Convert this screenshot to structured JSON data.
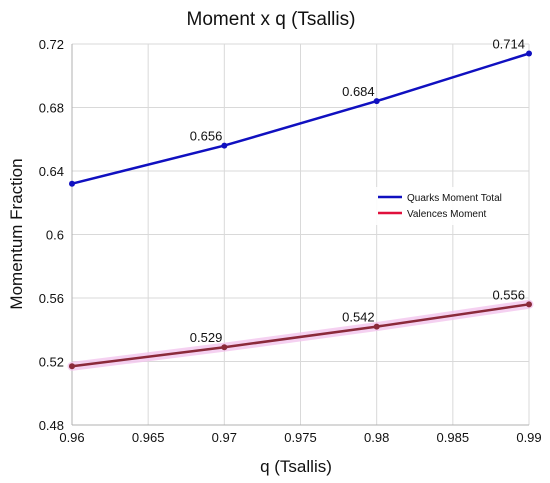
{
  "chart_data": {
    "type": "line",
    "title": "Moment x q (Tsallis)",
    "xlabel": "q (Tsallis)",
    "ylabel": "Momentum Fraction",
    "xlim": [
      0.96,
      0.99
    ],
    "ylim": [
      0.48,
      0.72
    ],
    "x_ticks": [
      "0.96",
      "0.965",
      "0.97",
      "0.975",
      "0.98",
      "0.985",
      "0.99"
    ],
    "y_ticks": [
      "0.48",
      "0.52",
      "0.56",
      "0.6",
      "0.64",
      "0.68",
      "0.72"
    ],
    "grid": true,
    "legend_position": "right",
    "series": [
      {
        "name": "Quarks Moment Total",
        "color": "#1010c0",
        "x": [
          0.96,
          0.97,
          0.98,
          0.99
        ],
        "y": [
          0.632,
          0.656,
          0.684,
          0.714
        ],
        "labels": [
          "",
          "0.656",
          "0.684",
          "0.714"
        ]
      },
      {
        "name": "Valences Moment",
        "color": "#8b2a3a",
        "x": [
          0.96,
          0.97,
          0.98,
          0.99
        ],
        "y": [
          0.517,
          0.529,
          0.542,
          0.556
        ],
        "labels": [
          "",
          "0.529",
          "0.542",
          "0.556"
        ]
      }
    ]
  }
}
